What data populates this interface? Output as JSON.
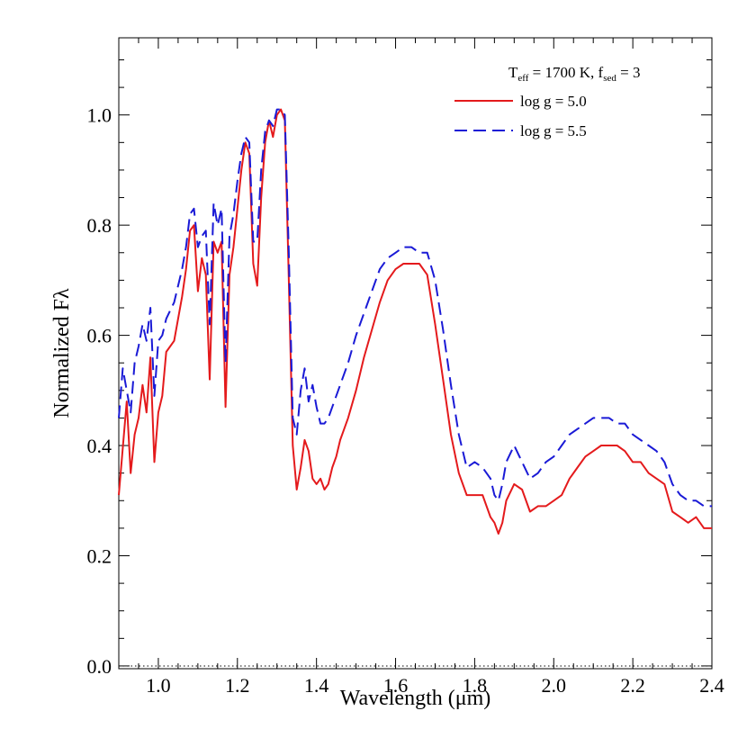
{
  "chart_data": {
    "type": "line",
    "title": "",
    "xlabel": "Wavelength (μm)",
    "ylabel": "Normalized Fλ",
    "xlim": [
      0.9,
      2.4
    ],
    "ylim": [
      -0.005,
      1.14
    ],
    "xticks": [
      1.0,
      1.2,
      1.4,
      1.6,
      1.8,
      2.0,
      2.2,
      2.4
    ],
    "yticks": [
      0.0,
      0.2,
      0.4,
      0.6,
      0.8,
      1.0
    ],
    "xtick_labels": [
      "1.0",
      "1.2",
      "1.4",
      "1.6",
      "1.8",
      "2.0",
      "2.2",
      "2.4"
    ],
    "ytick_labels": [
      "0.0",
      "0.2",
      "0.4",
      "0.6",
      "0.8",
      "1.0"
    ],
    "zero_line": true,
    "grid": false,
    "legend": {
      "placement": "top-right",
      "annotation_T": "T",
      "annotation_T_sub": "eff",
      "annotation_mid": " = 1700 K, f",
      "annotation_f_sub": "sed",
      "annotation_end": " = 3"
    },
    "series": [
      {
        "name": "log g = 5.0",
        "color": "#e41a1c",
        "style": "solid",
        "x": [
          0.9,
          0.92,
          0.93,
          0.94,
          0.95,
          0.96,
          0.97,
          0.98,
          0.99,
          1.0,
          1.01,
          1.02,
          1.04,
          1.06,
          1.07,
          1.08,
          1.09,
          1.1,
          1.11,
          1.12,
          1.13,
          1.14,
          1.15,
          1.16,
          1.17,
          1.18,
          1.19,
          1.2,
          1.21,
          1.22,
          1.23,
          1.24,
          1.25,
          1.26,
          1.27,
          1.28,
          1.29,
          1.3,
          1.31,
          1.32,
          1.33,
          1.34,
          1.35,
          1.36,
          1.37,
          1.38,
          1.39,
          1.4,
          1.41,
          1.42,
          1.43,
          1.44,
          1.45,
          1.46,
          1.47,
          1.48,
          1.5,
          1.52,
          1.54,
          1.56,
          1.58,
          1.6,
          1.62,
          1.64,
          1.66,
          1.68,
          1.7,
          1.72,
          1.74,
          1.76,
          1.78,
          1.8,
          1.82,
          1.84,
          1.85,
          1.86,
          1.87,
          1.88,
          1.9,
          1.92,
          1.94,
          1.96,
          1.98,
          2.0,
          2.02,
          2.04,
          2.06,
          2.08,
          2.1,
          2.12,
          2.14,
          2.16,
          2.18,
          2.2,
          2.22,
          2.24,
          2.26,
          2.28,
          2.3,
          2.32,
          2.34,
          2.36,
          2.38,
          2.4
        ],
        "values": [
          0.31,
          0.48,
          0.35,
          0.42,
          0.45,
          0.51,
          0.46,
          0.56,
          0.37,
          0.46,
          0.49,
          0.57,
          0.59,
          0.67,
          0.72,
          0.79,
          0.8,
          0.68,
          0.74,
          0.71,
          0.52,
          0.77,
          0.75,
          0.77,
          0.47,
          0.71,
          0.76,
          0.83,
          0.9,
          0.95,
          0.93,
          0.73,
          0.69,
          0.85,
          0.95,
          0.99,
          0.96,
          1.0,
          1.01,
          0.99,
          0.7,
          0.4,
          0.32,
          0.36,
          0.41,
          0.39,
          0.34,
          0.33,
          0.34,
          0.32,
          0.33,
          0.36,
          0.38,
          0.41,
          0.43,
          0.45,
          0.5,
          0.56,
          0.61,
          0.66,
          0.7,
          0.72,
          0.73,
          0.73,
          0.73,
          0.71,
          0.62,
          0.52,
          0.42,
          0.35,
          0.31,
          0.31,
          0.31,
          0.27,
          0.26,
          0.24,
          0.26,
          0.3,
          0.33,
          0.32,
          0.28,
          0.29,
          0.29,
          0.3,
          0.31,
          0.34,
          0.36,
          0.38,
          0.39,
          0.4,
          0.4,
          0.4,
          0.39,
          0.37,
          0.37,
          0.35,
          0.34,
          0.33,
          0.28,
          0.27,
          0.26,
          0.27,
          0.25,
          0.25
        ]
      },
      {
        "name": "log g = 5.5",
        "color": "#1a1ad6",
        "style": "dashed",
        "x": [
          0.9,
          0.91,
          0.92,
          0.93,
          0.94,
          0.95,
          0.96,
          0.97,
          0.98,
          0.99,
          1.0,
          1.01,
          1.02,
          1.04,
          1.06,
          1.07,
          1.08,
          1.09,
          1.1,
          1.11,
          1.12,
          1.13,
          1.14,
          1.15,
          1.16,
          1.17,
          1.18,
          1.19,
          1.2,
          1.21,
          1.22,
          1.23,
          1.24,
          1.25,
          1.26,
          1.27,
          1.28,
          1.29,
          1.3,
          1.31,
          1.32,
          1.33,
          1.34,
          1.35,
          1.36,
          1.37,
          1.38,
          1.39,
          1.4,
          1.41,
          1.42,
          1.43,
          1.44,
          1.46,
          1.48,
          1.5,
          1.52,
          1.54,
          1.56,
          1.58,
          1.6,
          1.62,
          1.64,
          1.66,
          1.68,
          1.7,
          1.72,
          1.74,
          1.76,
          1.78,
          1.8,
          1.82,
          1.84,
          1.85,
          1.86,
          1.87,
          1.88,
          1.9,
          1.92,
          1.94,
          1.96,
          1.98,
          2.0,
          2.02,
          2.04,
          2.06,
          2.08,
          2.1,
          2.12,
          2.14,
          2.16,
          2.18,
          2.2,
          2.22,
          2.24,
          2.26,
          2.28,
          2.3,
          2.32,
          2.34,
          2.36,
          2.38,
          2.4
        ],
        "values": [
          0.45,
          0.54,
          0.5,
          0.46,
          0.55,
          0.58,
          0.62,
          0.59,
          0.65,
          0.49,
          0.59,
          0.6,
          0.63,
          0.66,
          0.72,
          0.76,
          0.82,
          0.83,
          0.76,
          0.78,
          0.79,
          0.62,
          0.84,
          0.8,
          0.83,
          0.55,
          0.78,
          0.82,
          0.88,
          0.93,
          0.96,
          0.95,
          0.77,
          0.77,
          0.9,
          0.97,
          0.99,
          0.98,
          1.01,
          1.01,
          1.0,
          0.75,
          0.45,
          0.42,
          0.5,
          0.54,
          0.48,
          0.51,
          0.47,
          0.44,
          0.44,
          0.45,
          0.47,
          0.51,
          0.55,
          0.6,
          0.64,
          0.68,
          0.72,
          0.74,
          0.75,
          0.76,
          0.76,
          0.75,
          0.75,
          0.7,
          0.61,
          0.51,
          0.42,
          0.36,
          0.37,
          0.36,
          0.34,
          0.31,
          0.3,
          0.33,
          0.37,
          0.4,
          0.37,
          0.34,
          0.35,
          0.37,
          0.38,
          0.4,
          0.42,
          0.43,
          0.44,
          0.45,
          0.45,
          0.45,
          0.44,
          0.44,
          0.42,
          0.41,
          0.4,
          0.39,
          0.37,
          0.33,
          0.31,
          0.3,
          0.3,
          0.29,
          0.29
        ]
      }
    ]
  }
}
